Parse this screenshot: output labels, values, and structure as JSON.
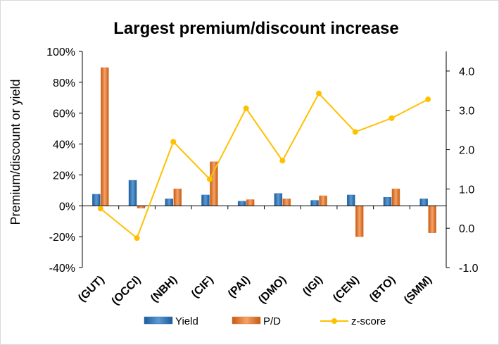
{
  "chart_data": {
    "type": "bar",
    "title": "Largest premium/discount increase",
    "ylabel": "Premium/discount or yield",
    "categories": [
      "(GUT)",
      "(OCCI)",
      "(NBH)",
      "(CIF)",
      "(PAI)",
      "(DMO)",
      "(IGI)",
      "(CEN)",
      "(BTO)",
      "(SMM)"
    ],
    "ylim": [
      -40,
      100
    ],
    "y_ticks": [
      -40,
      -20,
      0,
      20,
      40,
      60,
      80,
      100
    ],
    "y_tick_labels": [
      "-40%",
      "-20%",
      "0%",
      "20%",
      "40%",
      "60%",
      "80%",
      "100%"
    ],
    "y2lim": [
      -1.0,
      4.5
    ],
    "y2_ticks": [
      -1.0,
      0.0,
      1.0,
      2.0,
      3.0,
      4.0
    ],
    "y2_tick_labels": [
      "-1.0",
      "0.0",
      "1.0",
      "2.0",
      "3.0",
      "4.0"
    ],
    "grid": false,
    "legend_position": "bottom",
    "series": [
      {
        "name": "Yield",
        "kind": "bar",
        "axis": "left",
        "color": "#2e75b6",
        "values": [
          7.5,
          16.5,
          4.5,
          7.0,
          3.0,
          8.0,
          3.5,
          7.0,
          5.5,
          4.5
        ]
      },
      {
        "name": "P/D",
        "kind": "bar",
        "axis": "left",
        "color": "#ed7d31",
        "values": [
          89.5,
          -1.5,
          11.0,
          28.5,
          4.0,
          4.5,
          6.5,
          -20.0,
          11.0,
          -17.5
        ]
      },
      {
        "name": "z-score",
        "kind": "line",
        "axis": "right",
        "color": "#ffc000",
        "values": [
          0.5,
          -0.25,
          2.2,
          1.25,
          3.05,
          1.72,
          3.43,
          2.45,
          2.8,
          3.28
        ]
      }
    ]
  }
}
